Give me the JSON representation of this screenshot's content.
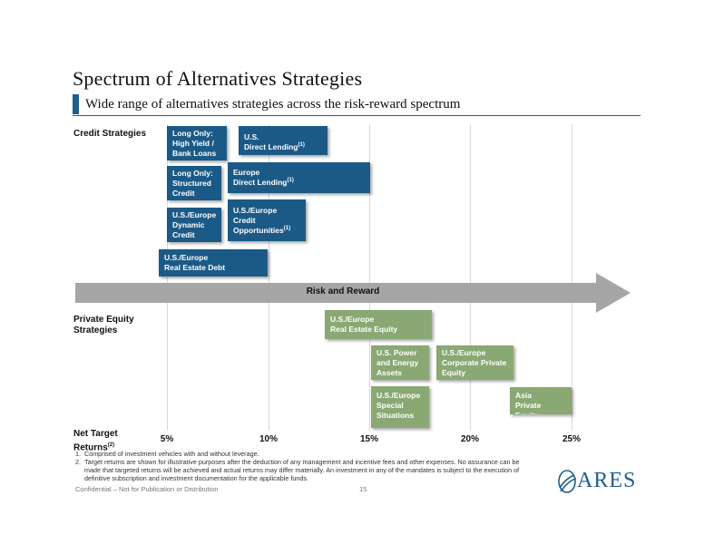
{
  "title": "Spectrum of Alternatives Strategies",
  "subtitle": "Wide range of alternatives strategies across the risk-reward spectrum",
  "colors": {
    "accent": "#1f5f8b",
    "credit": "#1b5a86",
    "private_equity": "#8aa873",
    "arrow": "#a6a6a6"
  },
  "rows": {
    "credit": "Credit Strategies",
    "private_equity_line1": "Private Equity",
    "private_equity_line2": "Strategies",
    "net_target_line1": "Net Target",
    "net_target_line2": "Returns",
    "net_target_ref": "(2)"
  },
  "arrow_label": "Risk and Reward",
  "ticks": [
    "5%",
    "10%",
    "15%",
    "20%",
    "25%"
  ],
  "credit_strategies": [
    {
      "lines": [
        "Long Only:",
        "High Yield /",
        "Bank Loans"
      ]
    },
    {
      "lines": [
        "U.S.",
        "Direct Lending"
      ],
      "ref": "(1)"
    },
    {
      "lines": [
        "Long Only:",
        "Structured",
        "Credit"
      ]
    },
    {
      "lines": [
        "Europe",
        "Direct Lending"
      ],
      "ref": "(1)"
    },
    {
      "lines": [
        "U.S./Europe",
        "Dynamic",
        "Credit"
      ]
    },
    {
      "lines": [
        "U.S./Europe",
        "Credit",
        "Opportunities"
      ],
      "ref": "(1)"
    },
    {
      "lines": [
        "U.S./Europe",
        "Real Estate Debt"
      ]
    }
  ],
  "private_equity_strategies": [
    {
      "lines": [
        "U.S./Europe",
        "Real Estate Equity"
      ]
    },
    {
      "lines": [
        "U.S. Power",
        "and Energy",
        "Assets"
      ]
    },
    {
      "lines": [
        "U.S./Europe",
        "Corporate Private",
        "Equity"
      ]
    },
    {
      "lines": [
        "U.S./Europe",
        "Special",
        "Situations"
      ]
    },
    {
      "lines": [
        "Asia",
        "Private Equity"
      ]
    }
  ],
  "footnotes": [
    {
      "num": "1.",
      "text": "Comprised of investment vehicles with and without leverage."
    },
    {
      "num": "2.",
      "text": "Target returns are shown for illustrative purposes after the deduction of any management and incentive fees and other expenses. No assurance can be made that targeted returns will be achieved and actual returns may differ materially. An investment in any of the mandates is subject to the execution of definitive subscription and investment documentation for the applicable funds."
    }
  ],
  "confidential": "Confidential – Not for Publication or Distribution",
  "page_number": "15",
  "logo_text": "ARES"
}
